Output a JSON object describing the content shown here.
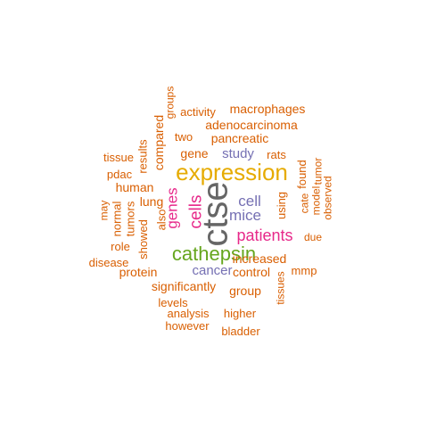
{
  "colors": {
    "orange": "#d95f02",
    "gold": "#e6ab02",
    "purple": "#7570b3",
    "magenta": "#e7298a",
    "green": "#66a61e",
    "gray": "#666666"
  },
  "words": [
    {
      "text": "ctse",
      "weight": 10,
      "color": "gray"
    },
    {
      "text": "expression",
      "weight": 8,
      "color": "gold"
    },
    {
      "text": "cathepsin",
      "weight": 7,
      "color": "green"
    },
    {
      "text": "cells",
      "weight": 6,
      "color": "magenta"
    },
    {
      "text": "patients",
      "weight": 5,
      "color": "magenta"
    },
    {
      "text": "genes",
      "weight": 5,
      "color": "magenta"
    },
    {
      "text": "cell",
      "weight": 5,
      "color": "purple"
    },
    {
      "text": "mice",
      "weight": 5,
      "color": "purple"
    },
    {
      "text": "cancer",
      "weight": 4,
      "color": "purple"
    },
    {
      "text": "study",
      "weight": 4,
      "color": "purple"
    },
    {
      "text": "increased",
      "weight": 3,
      "color": "orange"
    },
    {
      "text": "significantly",
      "weight": 3,
      "color": "orange"
    },
    {
      "text": "pancreatic",
      "weight": 3,
      "color": "orange"
    },
    {
      "text": "adenocarcinoma",
      "weight": 3,
      "color": "orange"
    },
    {
      "text": "macrophages",
      "weight": 3,
      "color": "orange"
    },
    {
      "text": "gene",
      "weight": 3,
      "color": "orange"
    },
    {
      "text": "human",
      "weight": 3,
      "color": "orange"
    },
    {
      "text": "lung",
      "weight": 3,
      "color": "orange"
    },
    {
      "text": "control",
      "weight": 3,
      "color": "orange"
    },
    {
      "text": "group",
      "weight": 3,
      "color": "orange"
    },
    {
      "text": "protein",
      "weight": 3,
      "color": "orange"
    },
    {
      "text": "using",
      "weight": 3,
      "color": "orange"
    },
    {
      "text": "compared",
      "weight": 3,
      "color": "orange"
    },
    {
      "text": "found",
      "weight": 3,
      "color": "orange"
    },
    {
      "text": "rats",
      "weight": 2,
      "color": "orange"
    },
    {
      "text": "two",
      "weight": 2,
      "color": "orange"
    },
    {
      "text": "activity",
      "weight": 2,
      "color": "orange"
    },
    {
      "text": "groups",
      "weight": 2,
      "color": "orange"
    },
    {
      "text": "results",
      "weight": 2,
      "color": "orange"
    },
    {
      "text": "tissue",
      "weight": 2,
      "color": "orange"
    },
    {
      "text": "pdac",
      "weight": 2,
      "color": "orange"
    },
    {
      "text": "may",
      "weight": 2,
      "color": "orange"
    },
    {
      "text": "normal",
      "weight": 2,
      "color": "orange"
    },
    {
      "text": "tumors",
      "weight": 2,
      "color": "orange"
    },
    {
      "text": "also",
      "weight": 2,
      "color": "orange"
    },
    {
      "text": "showed",
      "weight": 2,
      "color": "orange"
    },
    {
      "text": "role",
      "weight": 2,
      "color": "orange"
    },
    {
      "text": "disease",
      "weight": 2,
      "color": "orange"
    },
    {
      "text": "levels",
      "weight": 2,
      "color": "orange"
    },
    {
      "text": "analysis",
      "weight": 2,
      "color": "orange"
    },
    {
      "text": "higher",
      "weight": 2,
      "color": "orange"
    },
    {
      "text": "however",
      "weight": 2,
      "color": "orange"
    },
    {
      "text": "bladder",
      "weight": 2,
      "color": "orange"
    },
    {
      "text": "mmp",
      "weight": 2,
      "color": "orange"
    },
    {
      "text": "tissues",
      "weight": 2,
      "color": "orange"
    },
    {
      "text": "due",
      "weight": 2,
      "color": "orange"
    },
    {
      "text": "cate",
      "weight": 2,
      "color": "orange"
    },
    {
      "text": "model",
      "weight": 2,
      "color": "orange"
    },
    {
      "text": "tumor",
      "weight": 2,
      "color": "orange"
    },
    {
      "text": "observed",
      "weight": 2,
      "color": "orange"
    }
  ]
}
